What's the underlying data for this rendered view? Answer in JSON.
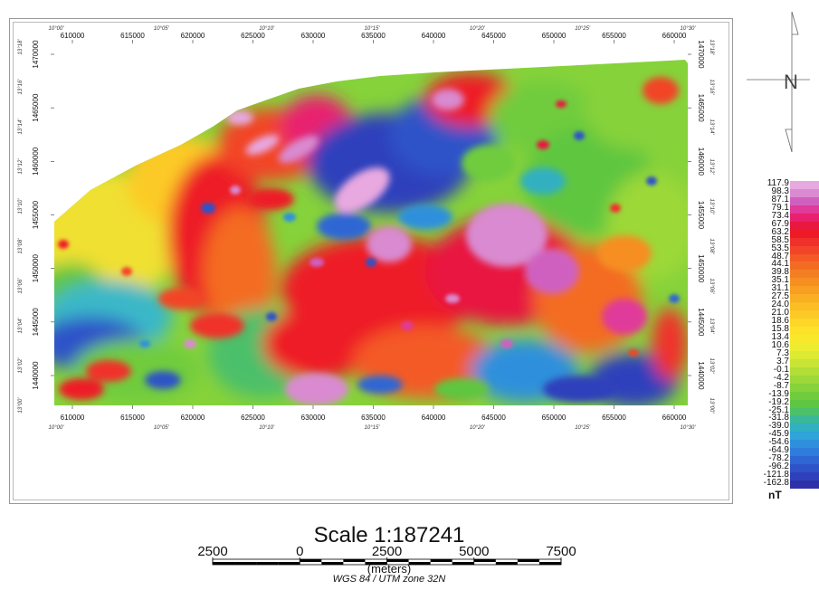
{
  "map": {
    "x_labels": [
      "610000",
      "615000",
      "620000",
      "625000",
      "630000",
      "635000",
      "640000",
      "645000",
      "650000",
      "655000",
      "660000"
    ],
    "x_degrees": [
      "10°00'",
      "10°05'",
      "10°10'",
      "10°15'",
      "10°20'",
      "10°25'",
      "10°30'"
    ],
    "y_labels": [
      "1470000",
      "1465000",
      "1460000",
      "1455000",
      "1450000",
      "1445000",
      "1440000"
    ],
    "y_degrees": [
      "13°18'",
      "13°16'",
      "13°14'",
      "13°12'",
      "13°10'",
      "13°08'",
      "13°06'",
      "13°04'",
      "13°02'",
      "13°00'"
    ]
  },
  "legend": {
    "values": [
      "117.9",
      "98.3",
      "87.1",
      "79.1",
      "73.4",
      "67.9",
      "63.2",
      "58.5",
      "53.5",
      "48.7",
      "44.1",
      "39.8",
      "35.1",
      "31.1",
      "27.5",
      "24.0",
      "21.0",
      "18.6",
      "15.8",
      "13.4",
      "10.6",
      "7.3",
      "3.7",
      "-0.1",
      "-4.2",
      "-8.7",
      "-13.9",
      "-19.2",
      "-25.1",
      "-31.8",
      "-39.0",
      "-45.9",
      "-54.6",
      "-64.9",
      "-78.2",
      "-96.2",
      "-121.8",
      "-162.8"
    ],
    "colors": [
      "#e8a8e0",
      "#d98ad0",
      "#d060c0",
      "#e03a9a",
      "#e8206e",
      "#e81840",
      "#ee1a28",
      "#f0302a",
      "#f24428",
      "#f45a26",
      "#f46c24",
      "#f47e22",
      "#f68e22",
      "#f89e22",
      "#faae22",
      "#fbbc24",
      "#fcca26",
      "#fdd628",
      "#fde22a",
      "#f8e82c",
      "#ecec30",
      "#dcea32",
      "#c8e434",
      "#b2de36",
      "#9cd838",
      "#86d23a",
      "#70cc3c",
      "#5ec640",
      "#4cc06a",
      "#3ab898",
      "#30b0c0",
      "#2ea4d8",
      "#2e90dc",
      "#2e7cdc",
      "#2e66d4",
      "#2e52c8",
      "#2e40bc",
      "#2e30a8"
    ],
    "unit": "nT"
  },
  "scale": {
    "title": "Scale 1:187241",
    "labels": [
      "2500",
      "0",
      "2500",
      "5000",
      "7500"
    ],
    "units": "(meters)",
    "crs": "WGS 84 / UTM zone 32N"
  }
}
